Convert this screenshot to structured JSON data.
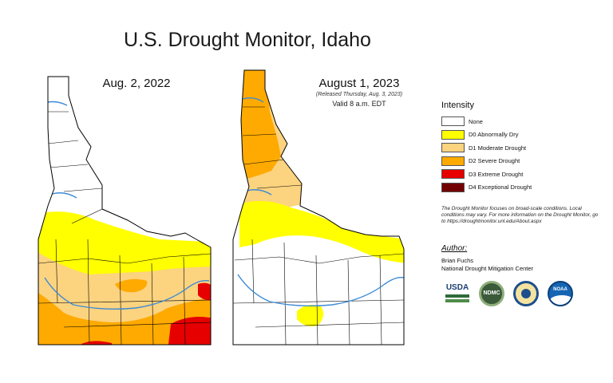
{
  "title": "U.S. Drought Monitor, Idaho",
  "maps": {
    "left": {
      "date": "Aug. 2, 2022"
    },
    "right": {
      "date": "August 1, 2023",
      "released": "(Released Thursday, Aug. 3, 2023)",
      "valid": "Valid 8 a.m. EDT"
    }
  },
  "legend": {
    "title": "Intensity",
    "items": [
      {
        "label": "None",
        "color": "#ffffff"
      },
      {
        "label": "D0 Abnormally Dry",
        "color": "#ffff00"
      },
      {
        "label": "D1 Moderate Drought",
        "color": "#fcd37f"
      },
      {
        "label": "D2 Severe Drought",
        "color": "#ffaa00"
      },
      {
        "label": "D3 Extreme Drought",
        "color": "#e60000"
      },
      {
        "label": "D4 Exceptional Drought",
        "color": "#730000"
      }
    ]
  },
  "note": "The Drought Monitor focuses on broad-scale conditions. Local conditions may vary. For more information on the Drought Monitor, go to https://droughtmonitor.unl.edu/About.aspx",
  "author": {
    "heading": "Author:",
    "name": "Brian Fuchs",
    "org": "National Drought Mitigation Center"
  },
  "logos": {
    "usda": "USDA",
    "ndmc": "NDMC",
    "noaa": "NOAA"
  },
  "colors": {
    "none": "#ffffff",
    "d0": "#ffff00",
    "d1": "#fcd37f",
    "d2": "#ffaa00",
    "d3": "#e60000",
    "d4": "#730000",
    "rivers": "#3d8ad6",
    "borders": "#000000"
  }
}
